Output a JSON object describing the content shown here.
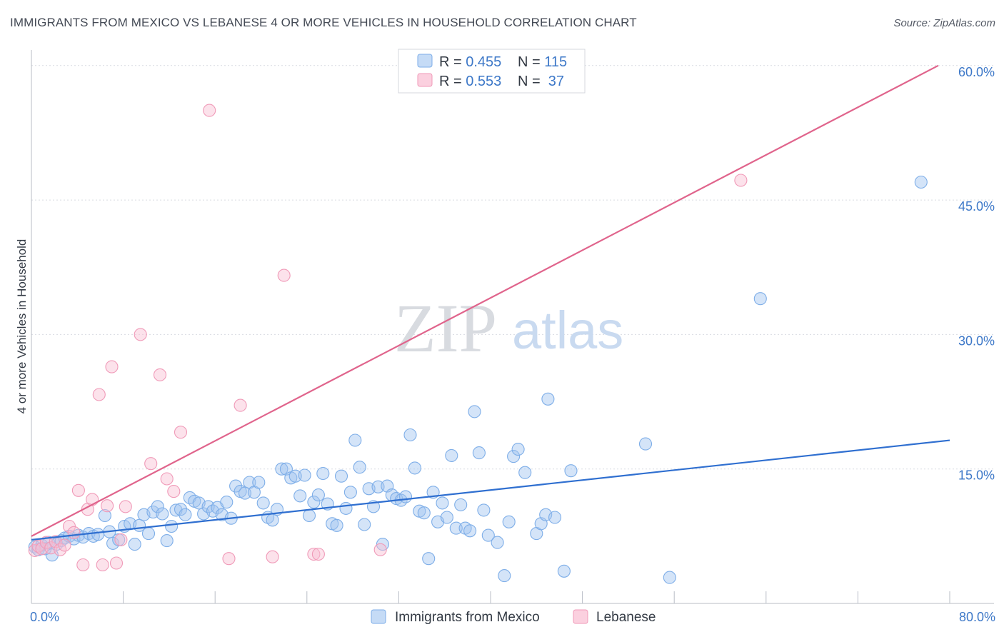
{
  "title": "IMMIGRANTS FROM MEXICO VS LEBANESE 4 OR MORE VEHICLES IN HOUSEHOLD CORRELATION CHART",
  "source": "Source: ZipAtlas.com",
  "watermark": {
    "zip": "ZIP",
    "atlas": "atlas"
  },
  "colors": {
    "mexico": "#7eaee8",
    "mexico_line": "#2f6fd0",
    "lebanese": "#f09ab8",
    "lebanese_line": "#e0648c",
    "tick": "#3d78c8",
    "grid": "#d9dce2"
  },
  "legend": {
    "rows": [
      {
        "r_label": "R = ",
        "r_value": "0.455",
        "n_label": "N = ",
        "n_value": "115"
      },
      {
        "r_label": "R = ",
        "r_value": "0.553",
        "n_label": "N = ",
        "n_value": " 37"
      }
    ]
  },
  "bottom_legend": [
    "Immigrants from Mexico",
    "Lebanese"
  ],
  "chart_data": {
    "type": "scatter",
    "title": "IMMIGRANTS FROM MEXICO VS LEBANESE 4 OR MORE VEHICLES IN HOUSEHOLD CORRELATION CHART",
    "xlabel": "",
    "ylabel": "4 or more Vehicles in Household",
    "xlim": [
      0,
      80
    ],
    "ylim": [
      0,
      60
    ],
    "x_tick_labels": [
      {
        "value": 0,
        "label": "0.0%"
      },
      {
        "value": 80,
        "label": "80.0%"
      }
    ],
    "y_tick_labels": [
      {
        "value": 15,
        "label": "15.0%"
      },
      {
        "value": 30,
        "label": "30.0%"
      },
      {
        "value": 45,
        "label": "45.0%"
      },
      {
        "value": 60,
        "label": "60.0%"
      }
    ],
    "legend_position": "top-center",
    "grid": true,
    "series": [
      {
        "name": "Immigrants from Mexico",
        "color": "#7eaee8",
        "r": 0.455,
        "n": 115,
        "trend": [
          [
            0,
            7.1
          ],
          [
            80,
            18.2
          ]
        ],
        "points": [
          [
            0.3,
            6.3
          ],
          [
            0.6,
            6.0
          ],
          [
            0.9,
            6.5
          ],
          [
            1.2,
            6.1
          ],
          [
            1.5,
            6.8
          ],
          [
            1.8,
            5.4
          ],
          [
            2.2,
            6.6
          ],
          [
            2.6,
            7.0
          ],
          [
            2.9,
            7.3
          ],
          [
            3.3,
            7.5
          ],
          [
            3.7,
            7.2
          ],
          [
            4.1,
            7.6
          ],
          [
            4.5,
            7.4
          ],
          [
            5.0,
            7.8
          ],
          [
            5.4,
            7.5
          ],
          [
            5.8,
            7.7
          ],
          [
            6.4,
            9.8
          ],
          [
            6.8,
            8.0
          ],
          [
            7.1,
            6.7
          ],
          [
            7.6,
            7.1
          ],
          [
            8.1,
            8.6
          ],
          [
            8.6,
            8.9
          ],
          [
            9.0,
            6.6
          ],
          [
            9.4,
            8.7
          ],
          [
            9.8,
            9.9
          ],
          [
            10.2,
            7.8
          ],
          [
            10.6,
            10.2
          ],
          [
            11.0,
            10.8
          ],
          [
            11.4,
            10.0
          ],
          [
            11.8,
            7.0
          ],
          [
            12.2,
            8.6
          ],
          [
            12.6,
            10.4
          ],
          [
            13.0,
            10.5
          ],
          [
            13.4,
            9.9
          ],
          [
            13.8,
            11.8
          ],
          [
            14.2,
            11.4
          ],
          [
            14.6,
            11.2
          ],
          [
            15.0,
            10.0
          ],
          [
            15.4,
            10.8
          ],
          [
            15.8,
            10.3
          ],
          [
            16.2,
            10.7
          ],
          [
            16.6,
            9.9
          ],
          [
            17.0,
            11.3
          ],
          [
            17.4,
            9.5
          ],
          [
            17.8,
            13.1
          ],
          [
            18.2,
            12.5
          ],
          [
            18.6,
            12.3
          ],
          [
            19.0,
            13.5
          ],
          [
            19.4,
            12.4
          ],
          [
            19.8,
            13.5
          ],
          [
            20.2,
            11.2
          ],
          [
            20.6,
            9.6
          ],
          [
            21.0,
            9.3
          ],
          [
            21.4,
            10.5
          ],
          [
            21.8,
            15.0
          ],
          [
            22.2,
            15.0
          ],
          [
            22.6,
            14.0
          ],
          [
            23.0,
            14.2
          ],
          [
            23.4,
            12.0
          ],
          [
            23.8,
            14.3
          ],
          [
            24.2,
            9.8
          ],
          [
            24.6,
            11.3
          ],
          [
            25.0,
            12.1
          ],
          [
            25.4,
            14.5
          ],
          [
            25.8,
            11.1
          ],
          [
            26.2,
            8.9
          ],
          [
            26.6,
            8.7
          ],
          [
            27.0,
            14.2
          ],
          [
            27.4,
            10.6
          ],
          [
            27.8,
            12.4
          ],
          [
            28.2,
            18.2
          ],
          [
            28.6,
            15.2
          ],
          [
            29.0,
            8.8
          ],
          [
            29.4,
            12.8
          ],
          [
            29.8,
            10.8
          ],
          [
            30.2,
            13.0
          ],
          [
            30.6,
            6.6
          ],
          [
            31.0,
            13.1
          ],
          [
            31.4,
            12.1
          ],
          [
            31.8,
            11.7
          ],
          [
            32.2,
            11.5
          ],
          [
            32.6,
            11.9
          ],
          [
            33.0,
            18.8
          ],
          [
            33.4,
            15.1
          ],
          [
            33.8,
            10.3
          ],
          [
            34.2,
            10.1
          ],
          [
            34.6,
            5.0
          ],
          [
            35.0,
            12.4
          ],
          [
            35.4,
            9.1
          ],
          [
            35.8,
            11.2
          ],
          [
            36.2,
            9.6
          ],
          [
            36.6,
            16.5
          ],
          [
            37.0,
            8.4
          ],
          [
            37.4,
            11.0
          ],
          [
            37.8,
            8.4
          ],
          [
            38.2,
            8.1
          ],
          [
            38.6,
            21.4
          ],
          [
            39.0,
            16.8
          ],
          [
            39.4,
            10.4
          ],
          [
            39.8,
            7.6
          ],
          [
            40.6,
            6.8
          ],
          [
            41.2,
            3.1
          ],
          [
            41.6,
            9.1
          ],
          [
            42.0,
            16.4
          ],
          [
            42.4,
            17.2
          ],
          [
            43.0,
            14.6
          ],
          [
            44.0,
            7.8
          ],
          [
            44.4,
            8.9
          ],
          [
            44.8,
            9.9
          ],
          [
            45.0,
            22.8
          ],
          [
            45.6,
            9.6
          ],
          [
            46.4,
            3.6
          ],
          [
            47.0,
            14.8
          ],
          [
            53.5,
            17.8
          ],
          [
            55.6,
            2.9
          ],
          [
            63.5,
            34.0
          ],
          [
            77.5,
            47.0
          ]
        ]
      },
      {
        "name": "Lebanese",
        "color": "#f09ab8",
        "r": 0.553,
        "n": 37,
        "trend": [
          [
            0,
            7.5
          ],
          [
            79,
            60.0
          ]
        ],
        "points": [
          [
            0.3,
            5.9
          ],
          [
            0.6,
            6.4
          ],
          [
            0.9,
            6.1
          ],
          [
            1.3,
            6.8
          ],
          [
            1.7,
            6.2
          ],
          [
            2.1,
            6.9
          ],
          [
            2.5,
            6.0
          ],
          [
            2.9,
            6.5
          ],
          [
            3.3,
            8.6
          ],
          [
            3.7,
            7.9
          ],
          [
            4.1,
            12.6
          ],
          [
            4.5,
            4.3
          ],
          [
            4.9,
            10.5
          ],
          [
            5.3,
            11.6
          ],
          [
            5.9,
            23.3
          ],
          [
            6.2,
            4.3
          ],
          [
            6.6,
            10.9
          ],
          [
            7.0,
            26.4
          ],
          [
            7.4,
            4.5
          ],
          [
            7.8,
            7.1
          ],
          [
            8.2,
            10.8
          ],
          [
            9.5,
            30.0
          ],
          [
            10.4,
            15.6
          ],
          [
            11.2,
            25.5
          ],
          [
            11.8,
            13.9
          ],
          [
            12.4,
            12.5
          ],
          [
            13.0,
            19.1
          ],
          [
            15.5,
            55.0
          ],
          [
            17.2,
            5.0
          ],
          [
            18.2,
            22.1
          ],
          [
            21.0,
            5.2
          ],
          [
            22.0,
            36.6
          ],
          [
            24.6,
            5.5
          ],
          [
            25.0,
            5.5
          ],
          [
            30.4,
            6.0
          ],
          [
            33.8,
            60.0
          ],
          [
            61.8,
            47.2
          ]
        ]
      }
    ]
  }
}
